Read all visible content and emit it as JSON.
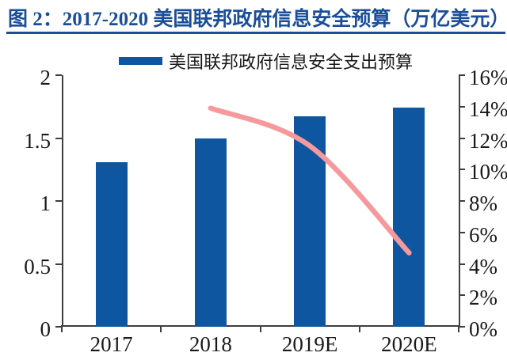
{
  "title": "图 2：2017-2020 美国联邦政府信息安全预算（万亿美元）",
  "colors": {
    "bar": "#0F56A0",
    "line": "#F5999C",
    "title": "#1A4E9A",
    "axis": "#3F3F3F",
    "text": "#1A1A1A"
  },
  "chart_data": {
    "type": "bar",
    "title": "图 2：2017-2020 美国联邦政府信息安全预算（万亿美元）",
    "legend": [
      "美国联邦政府信息安全支出预算"
    ],
    "legend_position": "top",
    "categories": [
      "2017",
      "2018",
      "2019E",
      "2020E"
    ],
    "series": [
      {
        "name": "美国联邦政府信息安全支出预算",
        "type": "bar",
        "axis": "left",
        "values": [
          1.31,
          1.5,
          1.67,
          1.74
        ]
      },
      {
        "type": "line",
        "axis": "right",
        "values": [
          null,
          13.9,
          11.5,
          4.7
        ]
      }
    ],
    "left_axis": {
      "min": 0,
      "max": 2,
      "step": 0.5,
      "tick_labels": [
        "0",
        "0.5",
        "1",
        "1.5",
        "2"
      ]
    },
    "right_axis": {
      "min": 0,
      "max": 16,
      "step": 2,
      "tick_labels": [
        "0%",
        "2%",
        "4%",
        "6%",
        "8%",
        "10%",
        "12%",
        "14%",
        "16%"
      ]
    },
    "grid": false
  }
}
